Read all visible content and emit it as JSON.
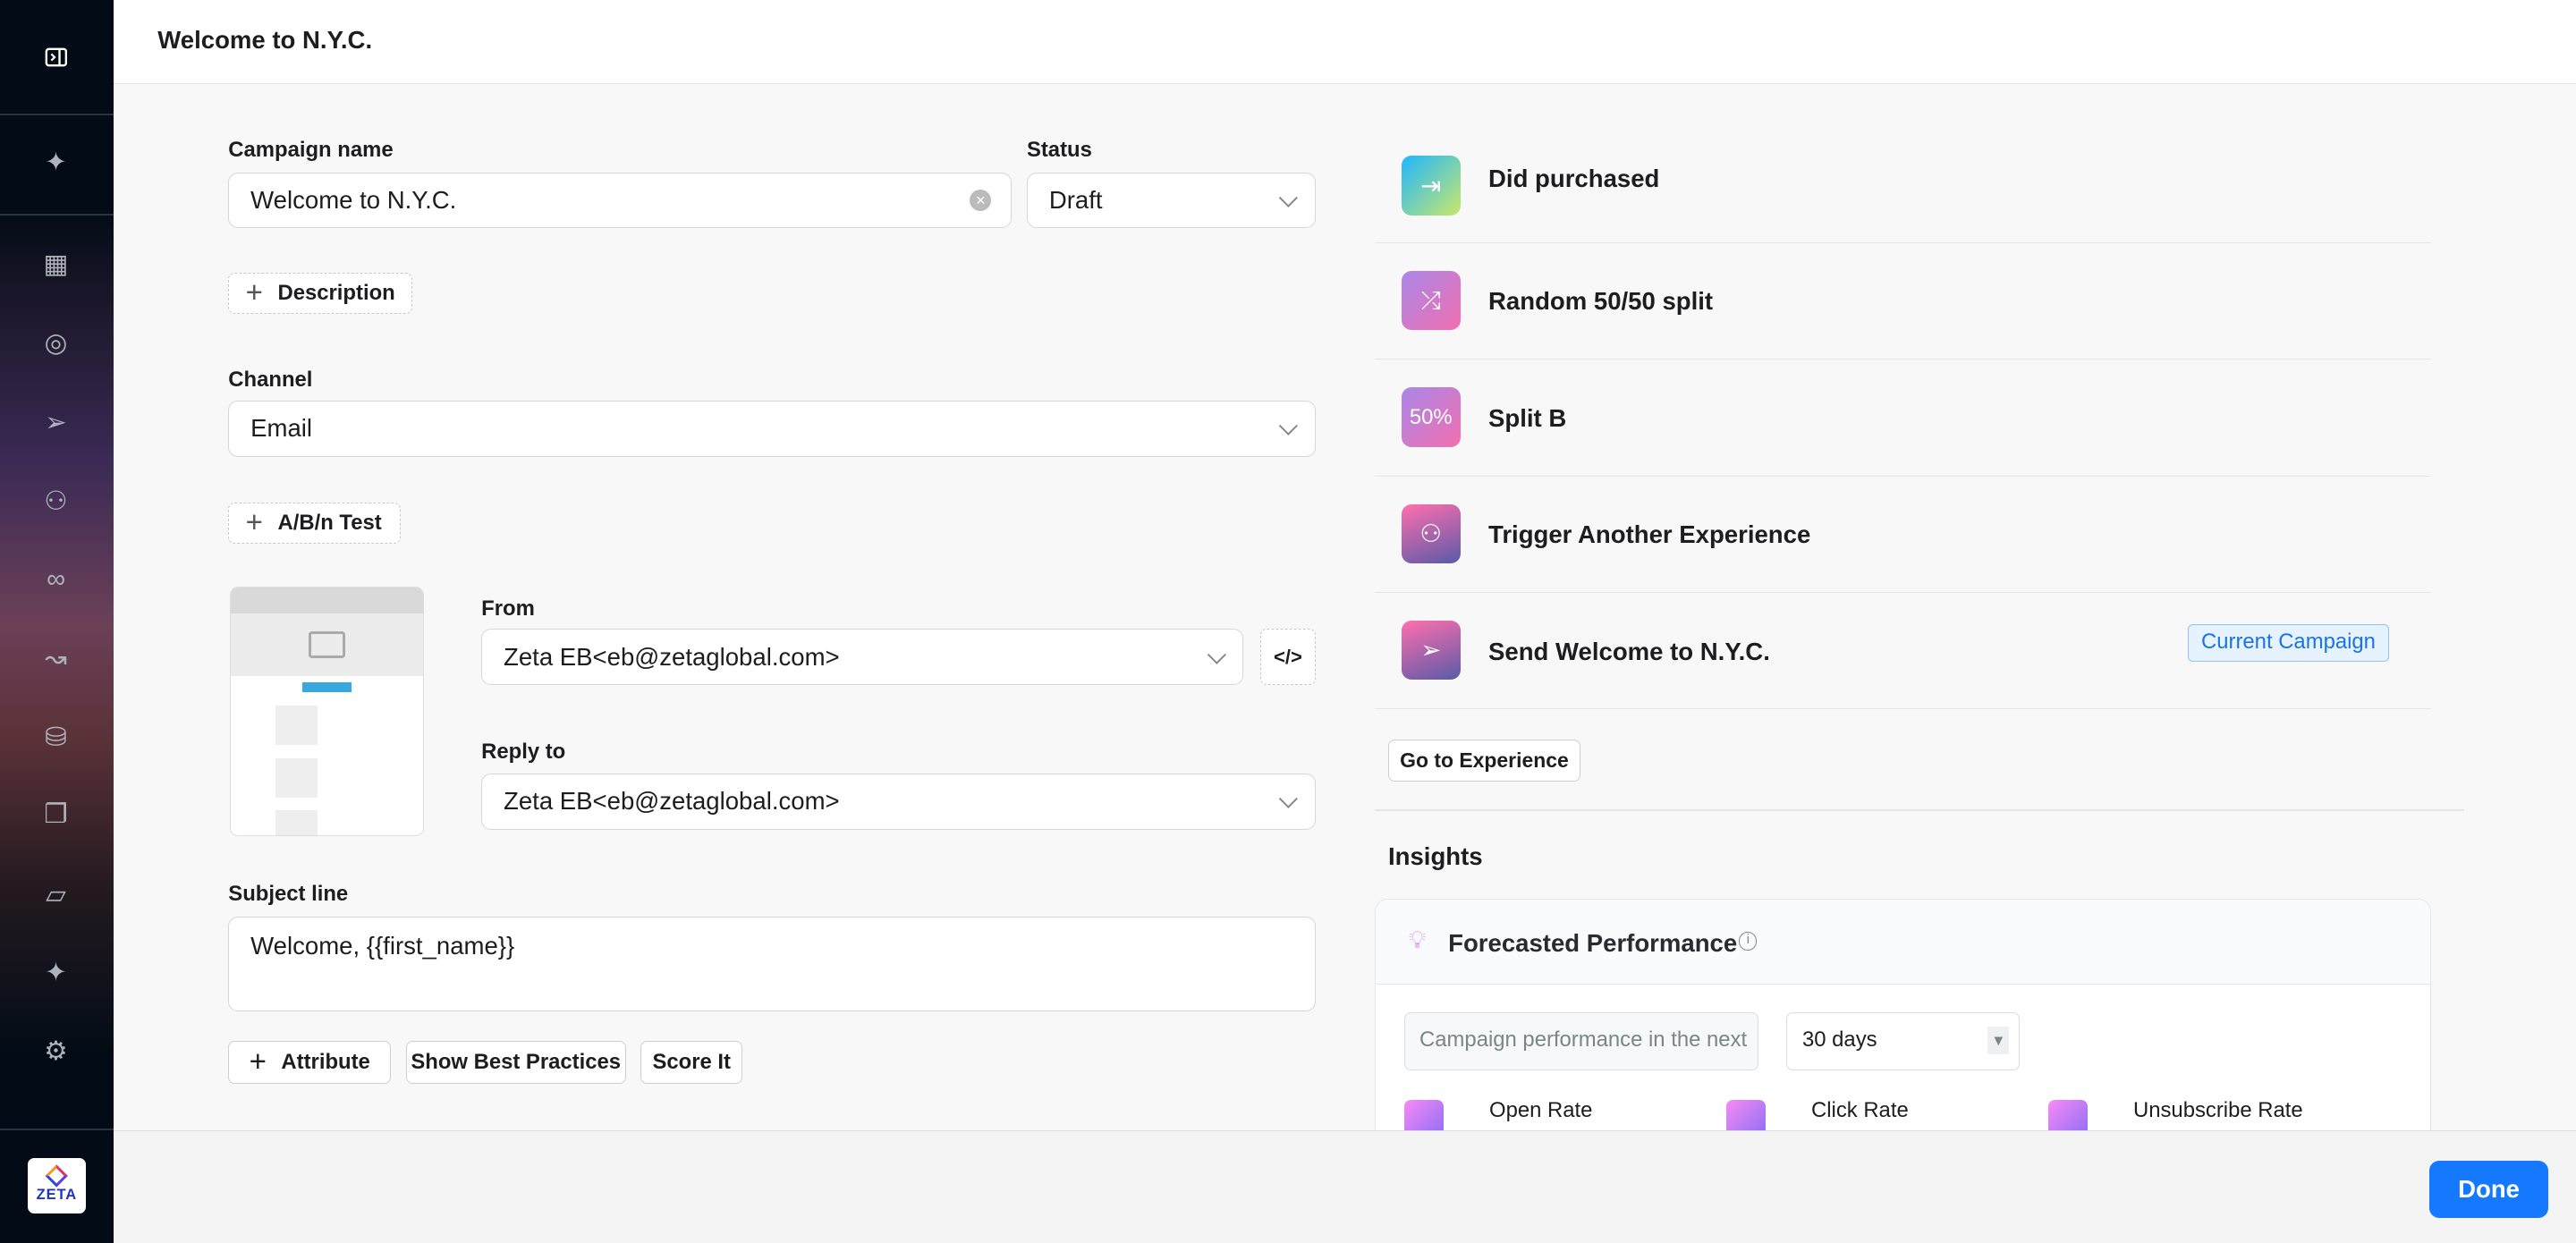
{
  "header": {
    "title": "Welcome to N.Y.C."
  },
  "sidebar": {
    "icons": [
      "panel-toggle-icon",
      "sparkle-icon",
      "dashboard-icon",
      "target-icon",
      "send-icon",
      "hierarchy-icon",
      "segments-icon",
      "journey-icon",
      "database-icon",
      "library-icon",
      "report-icon",
      "ai-sparkle-icon",
      "settings-icon"
    ],
    "logo": "ZETA"
  },
  "form": {
    "campaign_name_label": "Campaign name",
    "campaign_name_value": "Welcome to N.Y.C.",
    "status_label": "Status",
    "status_value": "Draft",
    "description_button": "Description",
    "channel_label": "Channel",
    "channel_value": "Email",
    "ab_test_button": "A/B/n Test",
    "from_label": "From",
    "from_value": "Zeta EB<eb@zetaglobal.com>",
    "reply_to_label": "Reply to",
    "reply_to_value": "Zeta EB<eb@zetaglobal.com>",
    "subject_label": "Subject line",
    "subject_value": "Welcome, {{first_name}}",
    "attribute_button": "Attribute",
    "best_practices_button": "Show Best Practices",
    "score_button": "Score It"
  },
  "experience": {
    "steps": [
      {
        "label": "Did purchased",
        "icon": "enter-icon",
        "colors": [
          "#1fb6ff",
          "#c9e86a"
        ]
      },
      {
        "label": "Random 50/50 split",
        "icon": "split-arrows-icon",
        "colors": [
          "#a987e8",
          "#f26fb0"
        ]
      },
      {
        "label": "Split B",
        "icon": "50%",
        "colors": [
          "#a987e8",
          "#f26fb0"
        ]
      },
      {
        "label": "Trigger Another Experience",
        "icon": "hierarchy-icon",
        "colors": [
          "#ff6fae",
          "#5a5aa8"
        ]
      },
      {
        "label": "Send Welcome to N.Y.C.",
        "icon": "send-icon",
        "colors": [
          "#ff6fae",
          "#5a5aa8"
        ]
      }
    ],
    "current_badge": "Current Campaign",
    "go_button": "Go to Experience"
  },
  "insights": {
    "title": "Insights",
    "card_title": "Forecasted Performance",
    "period_prefix": "Campaign performance in the next",
    "period_value": "30 days",
    "metrics": [
      "Open Rate",
      "Click Rate",
      "Unsubscribe Rate"
    ]
  },
  "footer": {
    "done": "Done"
  },
  "colors": {
    "primary": "#1479ff",
    "badge": "#1a73e8"
  }
}
